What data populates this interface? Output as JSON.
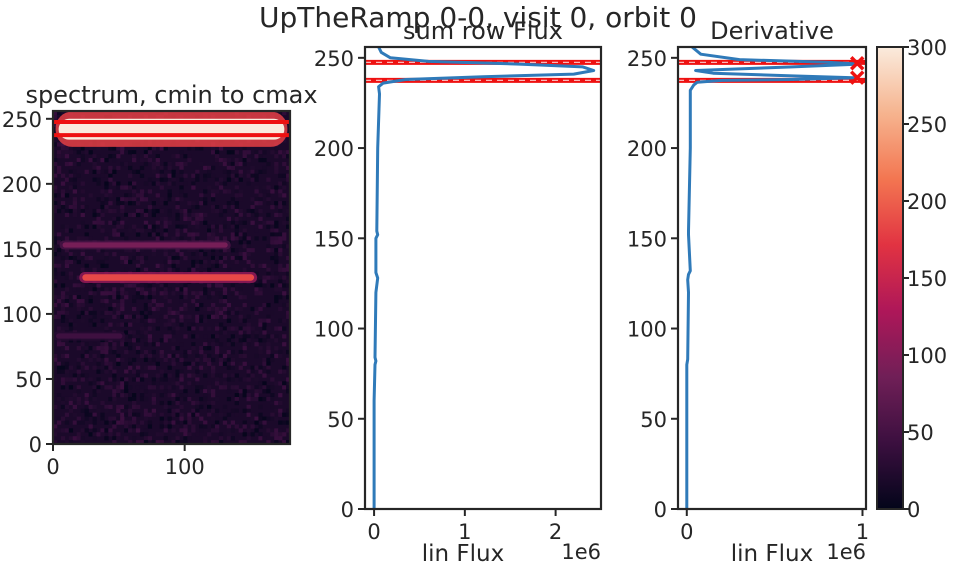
{
  "figure": {
    "suptitle": "UpTheRamp 0-0, visit 0, orbit 0"
  },
  "colors": {
    "axes_edge": "#262626",
    "profile_line": "#2f7ab9",
    "marker_red": "#ee1111",
    "colormap_stops": [
      "#03051a",
      "#3b0f3f",
      "#701f57",
      "#ae1759",
      "#e13342",
      "#f37651",
      "#f6b48f",
      "#faebdd"
    ]
  },
  "chart_data": [
    {
      "type": "heatmap",
      "title": "spectrum, cmin to cmax",
      "xlim": [
        0,
        180
      ],
      "ylim": [
        0,
        256
      ],
      "xticks": [
        0,
        100
      ],
      "yticks": [
        0,
        50,
        100,
        150,
        200,
        250
      ],
      "colormap": "rocket",
      "color_range": [
        0,
        300
      ],
      "bands": [
        {
          "y_center": 242,
          "half_width": 8,
          "x_start": 2,
          "x_end": 178,
          "level": 300
        },
        {
          "y_center": 128,
          "half_width": 2.5,
          "x_start": 20,
          "x_end": 155,
          "level": 185
        },
        {
          "y_center": 153,
          "half_width": 2,
          "x_start": 5,
          "x_end": 135,
          "level": 90
        },
        {
          "y_center": 83,
          "half_width": 2,
          "x_start": 0,
          "x_end": 55,
          "level": 45
        }
      ],
      "background_level": 18,
      "hlines": [
        237.5,
        247.5
      ]
    },
    {
      "type": "line",
      "title": "sum row Flux",
      "xlabel": "lin Flux",
      "x_offset_label": "1e6",
      "xlim": [
        -0.1,
        2.5
      ],
      "ylim": [
        0,
        256
      ],
      "xticks": [
        0,
        1,
        2
      ],
      "yticks": [
        0,
        50,
        100,
        150,
        200,
        250
      ],
      "series": [
        {
          "x": [
            0.0,
            0.0,
            0.01,
            0.02,
            0.01,
            0.02,
            0.04,
            0.02,
            0.02,
            0.02,
            0.04,
            0.03,
            0.04,
            0.06,
            0.05,
            0.1,
            0.35,
            1.2,
            2.2,
            2.42,
            2.3,
            1.6,
            0.6,
            0.18,
            0.08,
            0.05
          ],
          "y": [
            0,
            60,
            80,
            82,
            84,
            120,
            128,
            131,
            140,
            150,
            152,
            154,
            200,
            230,
            234,
            236,
            238,
            239.5,
            241,
            243,
            245,
            246.5,
            248,
            250,
            253,
            256
          ]
        }
      ],
      "hlines": [
        237.5,
        247.5
      ]
    },
    {
      "type": "line",
      "title": "Derivative",
      "xlabel": "lin Flux",
      "x_offset_label": "1e6",
      "xlim": [
        -0.05,
        1.02
      ],
      "ylim": [
        0,
        256
      ],
      "xticks": [
        0,
        1
      ],
      "yticks": [
        0,
        50,
        100,
        150,
        200,
        250
      ],
      "series": [
        {
          "x": [
            0.0,
            0.0,
            0.005,
            0.01,
            0.005,
            0.01,
            0.02,
            0.01,
            0.01,
            0.02,
            0.02,
            0.04,
            0.06,
            0.2,
            0.6,
            0.95,
            0.6,
            0.15,
            0.05,
            0.6,
            0.98,
            0.8,
            0.3,
            0.08,
            0.03
          ],
          "y": [
            0,
            80,
            83,
            120,
            127,
            130,
            132,
            152,
            154,
            200,
            232,
            235,
            236.5,
            237.5,
            238,
            239,
            240,
            241.5,
            243,
            245,
            246.5,
            247.5,
            249,
            252,
            256
          ]
        }
      ],
      "markers": [
        {
          "x": 0.97,
          "y": 239
        },
        {
          "x": 0.97,
          "y": 247
        }
      ],
      "hlines": [
        237.5,
        247.5
      ]
    }
  ],
  "colorbar": {
    "ticks": [
      0,
      50,
      100,
      150,
      200,
      250,
      300
    ],
    "range": [
      0,
      300
    ]
  }
}
